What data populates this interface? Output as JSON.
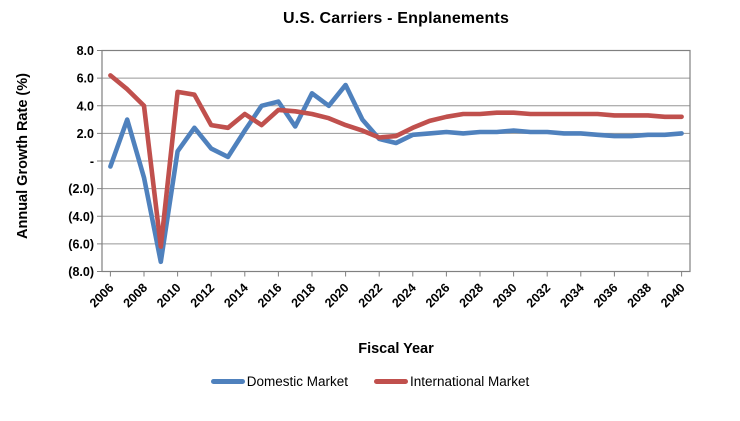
{
  "chart_data": {
    "type": "line",
    "title": "U.S. Carriers - Enplanements",
    "xlabel": "Fiscal Year",
    "ylabel": "Annual Growth Rate (%)",
    "ylim": [
      -8,
      8
    ],
    "grid": true,
    "legend_position": "bottom",
    "x_label_interval": 2,
    "y_ticks": [
      {
        "value": 8,
        "label": "8.0"
      },
      {
        "value": 6,
        "label": "6.0"
      },
      {
        "value": 4,
        "label": "4.0"
      },
      {
        "value": 2,
        "label": "2.0"
      },
      {
        "value": 0,
        "label": "-"
      },
      {
        "value": -2,
        "label": "(2.0)"
      },
      {
        "value": -4,
        "label": "(4.0)"
      },
      {
        "value": -6,
        "label": "(6.0)"
      },
      {
        "value": -8,
        "label": "(8.0)"
      }
    ],
    "categories": [
      2006,
      2007,
      2008,
      2009,
      2010,
      2011,
      2012,
      2013,
      2014,
      2015,
      2016,
      2017,
      2018,
      2019,
      2020,
      2021,
      2022,
      2023,
      2024,
      2025,
      2026,
      2027,
      2028,
      2029,
      2030,
      2031,
      2032,
      2033,
      2034,
      2035,
      2036,
      2037,
      2038,
      2039,
      2040
    ],
    "series": [
      {
        "name": "Domestic Market",
        "color": "#4F81BD",
        "values": [
          -0.4,
          3.0,
          -1.2,
          -7.3,
          0.7,
          2.4,
          0.9,
          0.3,
          2.2,
          4.0,
          4.3,
          2.5,
          4.9,
          4.0,
          5.5,
          3.0,
          1.6,
          1.3,
          1.9,
          2.0,
          2.1,
          2.0,
          2.1,
          2.1,
          2.2,
          2.1,
          2.1,
          2.0,
          2.0,
          1.9,
          1.8,
          1.8,
          1.9,
          1.9,
          2.0
        ]
      },
      {
        "name": "International Market",
        "color": "#C0504D",
        "values": [
          6.2,
          5.2,
          4.0,
          -6.2,
          5.0,
          4.8,
          2.6,
          2.4,
          3.4,
          2.6,
          3.7,
          3.6,
          3.4,
          3.1,
          2.6,
          2.2,
          1.7,
          1.8,
          2.4,
          2.9,
          3.2,
          3.4,
          3.4,
          3.5,
          3.5,
          3.4,
          3.4,
          3.4,
          3.4,
          3.4,
          3.3,
          3.3,
          3.3,
          3.2,
          3.2
        ]
      }
    ],
    "colors": {
      "gridline": "#969696",
      "axis": "#808080",
      "text": "#000000",
      "background": "#FFFFFF"
    }
  }
}
